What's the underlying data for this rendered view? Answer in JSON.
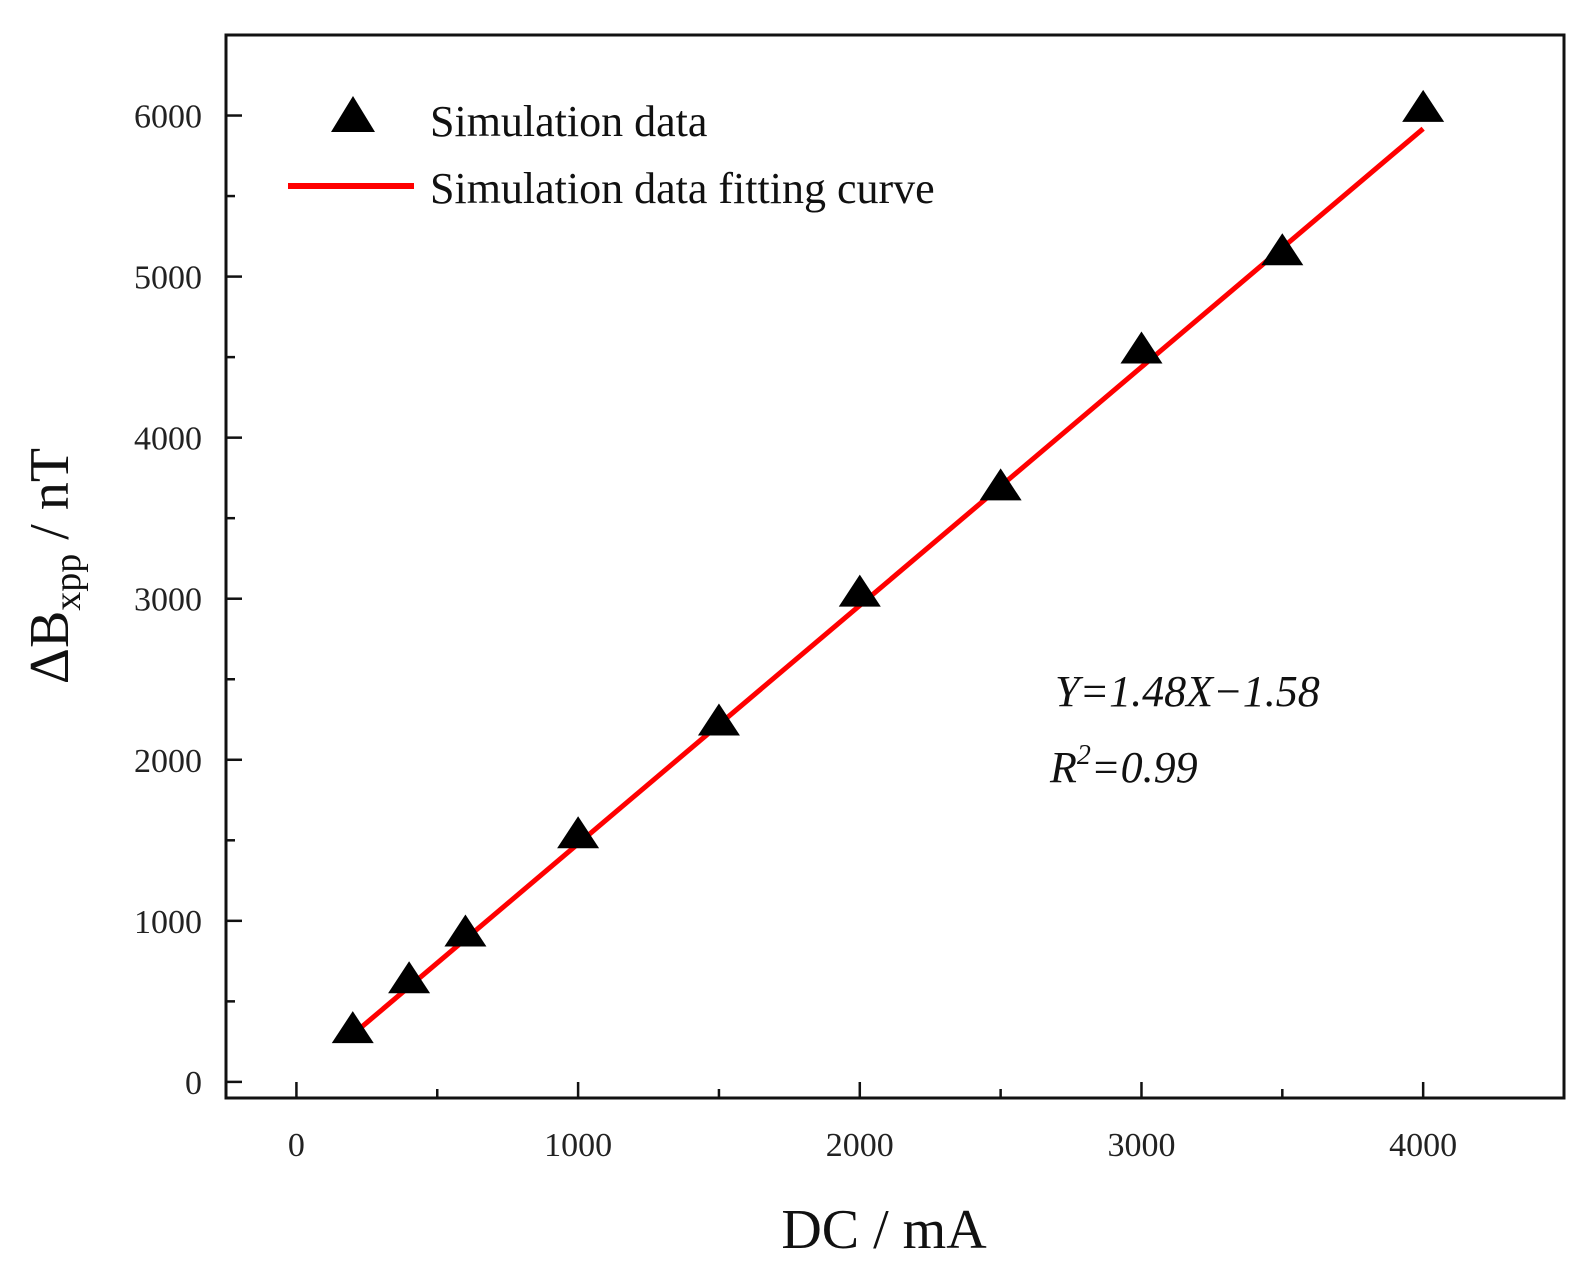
{
  "chart_data": {
    "type": "scatter",
    "title": "",
    "xlabel": "DC / mA",
    "ylabel": {
      "main": "ΔB",
      "subscript": "xpp",
      "unit": " / nT"
    },
    "xlim": [
      -250,
      4500
    ],
    "ylim": [
      -100,
      6500
    ],
    "xticks": [
      0,
      1000,
      2000,
      3000,
      4000
    ],
    "yticks": [
      0,
      1000,
      2000,
      3000,
      4000,
      5000,
      6000
    ],
    "grid": false,
    "legend_position": "top-left",
    "series": [
      {
        "name": "Simulation data",
        "kind": "scatter",
        "marker": "triangle",
        "color": "#000000",
        "x": [
          200,
          400,
          600,
          1000,
          1500,
          2000,
          2500,
          3000,
          3500,
          4000
        ],
        "y": [
          320,
          630,
          920,
          1530,
          2230,
          3030,
          3690,
          4540,
          5150,
          6040
        ]
      },
      {
        "name": "Simulation data fitting curve",
        "kind": "line",
        "color": "#ff0000",
        "x": [
          200,
          4000
        ],
        "y": [
          294.42,
          5918.42
        ]
      }
    ],
    "annotation": {
      "equation": "Y=1.48X−1.58",
      "r_squared_prefix": "R",
      "r_squared_exponent": "2",
      "r_squared_value": "=0.99"
    }
  }
}
